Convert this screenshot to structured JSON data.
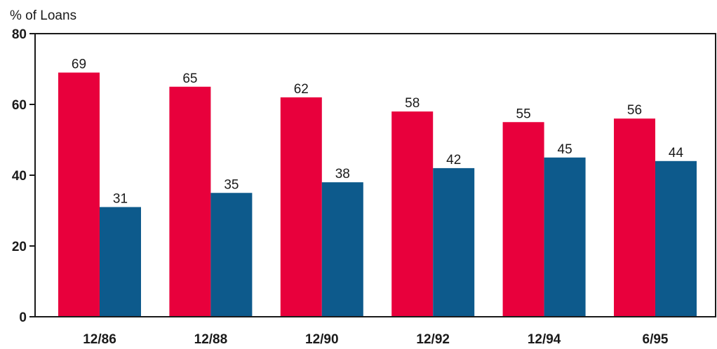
{
  "chart_data": {
    "type": "bar",
    "title": "",
    "xlabel": "",
    "ylabel": "% of Loans",
    "ylim": [
      0,
      80
    ],
    "yticks": [
      0,
      20,
      40,
      60,
      80
    ],
    "grid": false,
    "legend": "none",
    "categories": [
      "12/86",
      "12/88",
      "12/90",
      "12/92",
      "12/94",
      "6/95"
    ],
    "series": [
      {
        "color": "#e8003c",
        "values": [
          69,
          65,
          62,
          58,
          55,
          56
        ]
      },
      {
        "color": "#0d5a8c",
        "values": [
          31,
          35,
          38,
          42,
          45,
          44
        ]
      }
    ]
  }
}
